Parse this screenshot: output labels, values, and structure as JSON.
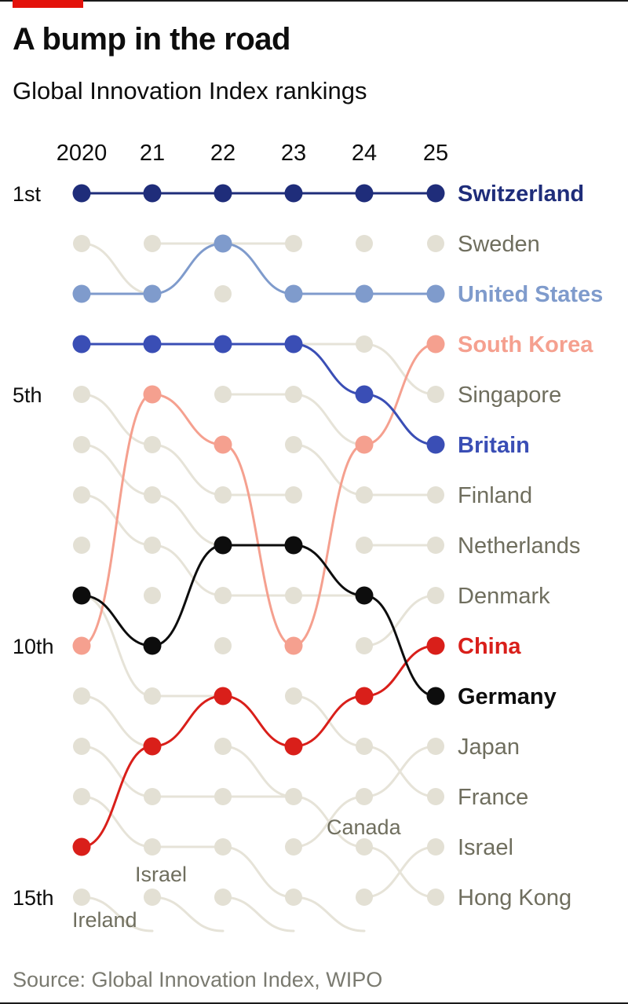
{
  "header": {
    "title": "A bump in the road",
    "subtitle": "Global Innovation Index rankings"
  },
  "source": "Source: Global Innovation Index, WIPO",
  "colors": {
    "background_dot": "#e3e0d4",
    "background_line": "#e6e3d8",
    "muted_label": "#6f6e5e",
    "Switzerland": "#1f2d7a",
    "United States": "#7f9bcc",
    "Britain": "#3a4eb5",
    "South Korea": "#f5a08f",
    "China": "#d91f1a",
    "Germany": "#0d0d0d"
  },
  "chart_data": {
    "type": "line",
    "x": [
      "2020",
      "21",
      "22",
      "23",
      "24",
      "25"
    ],
    "y_axis_labels": [
      {
        "rank": 1,
        "label": "1st"
      },
      {
        "rank": 5,
        "label": "5th"
      },
      {
        "rank": 10,
        "label": "10th"
      },
      {
        "rank": 15,
        "label": "15th"
      }
    ],
    "ylim": [
      1,
      15
    ],
    "highlighted_series": [
      {
        "name": "Switzerland",
        "values": [
          1,
          1,
          1,
          1,
          1,
          1
        ]
      },
      {
        "name": "United States",
        "values": [
          3,
          3,
          2,
          3,
          3,
          3
        ]
      },
      {
        "name": "South Korea",
        "values": [
          10,
          5,
          6,
          10,
          6,
          4
        ]
      },
      {
        "name": "Britain",
        "values": [
          4,
          4,
          4,
          4,
          5,
          6
        ]
      },
      {
        "name": "China",
        "values": [
          14,
          12,
          11,
          12,
          11,
          10
        ]
      },
      {
        "name": "Germany",
        "values": [
          9,
          10,
          8,
          8,
          9,
          11
        ]
      }
    ],
    "end_labels": [
      {
        "rank": 1,
        "name": "Switzerland",
        "highlight": true
      },
      {
        "rank": 2,
        "name": "Sweden",
        "highlight": false
      },
      {
        "rank": 3,
        "name": "United States",
        "highlight": true
      },
      {
        "rank": 4,
        "name": "South Korea",
        "highlight": true
      },
      {
        "rank": 5,
        "name": "Singapore",
        "highlight": false
      },
      {
        "rank": 6,
        "name": "Britain",
        "highlight": true
      },
      {
        "rank": 7,
        "name": "Finland",
        "highlight": false
      },
      {
        "rank": 8,
        "name": "Netherlands",
        "highlight": false
      },
      {
        "rank": 9,
        "name": "Denmark",
        "highlight": false
      },
      {
        "rank": 10,
        "name": "China",
        "highlight": true
      },
      {
        "rank": 11,
        "name": "Germany",
        "highlight": true
      },
      {
        "rank": 12,
        "name": "Japan",
        "highlight": false
      },
      {
        "rank": 13,
        "name": "France",
        "highlight": false
      },
      {
        "rank": 14,
        "name": "Israel",
        "highlight": false
      },
      {
        "rank": 15,
        "name": "Hong Kong",
        "highlight": false
      }
    ],
    "annotations": [
      {
        "text": "Ireland",
        "year_index": 0,
        "rank": 15
      },
      {
        "text": "Israel",
        "year_index": 1,
        "rank": 15
      },
      {
        "text": "Canada",
        "year_index": 3,
        "rank": 13
      }
    ]
  }
}
